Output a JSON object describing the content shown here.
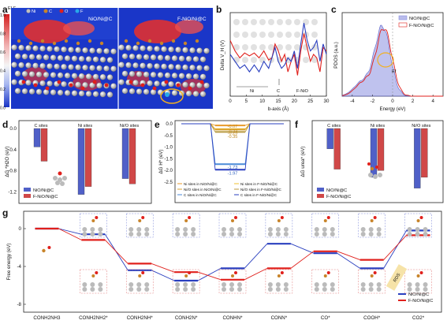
{
  "panels": {
    "a": {
      "letter": "a",
      "elf_label": "ELF",
      "scale_ticks": [
        "1.0",
        "0.8",
        "0.6",
        "0.4",
        "0.2",
        "0.0"
      ],
      "legend": [
        {
          "label": "Ni",
          "color": "#bfbfbf"
        },
        {
          "label": "C",
          "color": "#c8842a"
        },
        {
          "label": "O",
          "color": "#e0201c"
        },
        {
          "label": "F",
          "color": "#28a8e8"
        }
      ],
      "left_title": "NiO/Ni@C",
      "right_title": "F-NiO/Ni@C"
    },
    "b": {
      "letter": "b",
      "ylabel": "Delta V_H (V)",
      "xlabel": "b-axis (Å)",
      "ni_label": "Ni",
      "c_label": "C",
      "fnio_label": "F-NiO"
    },
    "c": {
      "letter": "c",
      "ylabel": "PDOS (a.u.)",
      "xlabel": "Energy (eV)",
      "ef_label": "Ef"
    },
    "d": {
      "letter": "d",
      "ylabel": "ΔG *H2O (eV)"
    },
    "e": {
      "letter": "e",
      "ylabel": "ΔG H* (eV)"
    },
    "f": {
      "letter": "f",
      "ylabel": "ΔG urea* (eV)"
    },
    "g": {
      "letter": "g",
      "ylabel": "Free energy (eV)",
      "rds_label": "RDS"
    }
  },
  "chart_data": [
    {
      "panel": "b",
      "type": "line",
      "xlabel": "b-axis (Å)",
      "ylabel": "Delta V_H (V)",
      "xlim": [
        0,
        30
      ],
      "xticks": [
        0,
        5,
        10,
        15,
        20,
        25,
        30
      ],
      "ylim": [
        -0.6,
        0.6
      ],
      "series": [
        {
          "color": "#e0201c",
          "x": [
            0,
            1.5,
            3,
            4.5,
            6,
            7.5,
            9,
            10.5,
            12,
            13,
            14,
            15,
            16,
            17,
            18,
            19,
            20,
            21,
            22,
            23,
            24,
            25,
            26,
            27,
            28,
            29,
            30
          ],
          "y": [
            0.2,
            0.05,
            -0.05,
            0.02,
            -0.02,
            0.02,
            -0.05,
            0.05,
            -0.08,
            -0.05,
            0.15,
            0.05,
            -0.1,
            0.0,
            -0.25,
            -0.1,
            0.0,
            -0.3,
            0.05,
            0.3,
            0.1,
            -0.1,
            0.0,
            -0.05,
            -0.25,
            0.1,
            0.05
          ]
        },
        {
          "color": "#2a3fbf",
          "x": [
            0,
            1.5,
            3,
            4.5,
            6,
            7.5,
            9,
            10.5,
            12,
            13,
            14,
            15,
            16,
            17,
            18,
            19,
            20,
            21,
            22,
            23,
            24,
            25,
            26,
            27,
            28,
            29,
            30
          ],
          "y": [
            0.0,
            -0.1,
            -0.2,
            -0.15,
            -0.25,
            -0.15,
            -0.25,
            -0.1,
            -0.2,
            -0.05,
            0.1,
            -0.1,
            -0.2,
            -0.15,
            -0.05,
            -0.1,
            0.05,
            -0.2,
            0.15,
            0.45,
            0.2,
            0.05,
            0.1,
            0.2,
            -0.1,
            0.15,
            0.0
          ]
        }
      ]
    },
    {
      "panel": "c",
      "type": "area",
      "xlabel": "Energy (eV)",
      "ylabel": "PDOS (a.u.)",
      "xlim": [
        -5,
        5
      ],
      "xticks": [
        -4,
        -2,
        0,
        2,
        4
      ],
      "series": [
        {
          "name": "NiO/Ni@C",
          "color": "#8a8fe0"
        },
        {
          "name": "F-NiO/Ni@C",
          "color": "#e0201c"
        }
      ]
    },
    {
      "panel": "d",
      "type": "bar",
      "ylabel": "ΔG *H2O (eV)",
      "categories": [
        "C sites",
        "Ni sites",
        "Ni/O sites"
      ],
      "ylim": [
        -1.3,
        0.0
      ],
      "yticks": [
        "0.0",
        "-0.4",
        "-0.8",
        "-1.2"
      ],
      "series": [
        {
          "name": "NiO/Ni@C",
          "color": "#5060c8",
          "values": [
            -0.35,
            -1.25,
            -0.95
          ]
        },
        {
          "name": "F-NiO/Ni@C",
          "color": "#d04848",
          "values": [
            -0.62,
            -1.1,
            -1.05
          ]
        }
      ]
    },
    {
      "panel": "e",
      "type": "line",
      "ylabel": "ΔG H* (eV)",
      "ylim": [
        -2.5,
        0.0
      ],
      "yticks": [
        "0.0",
        "-0.5",
        "-1.0",
        "-1.5",
        "-2.0",
        "-2.5"
      ],
      "labels": [
        "-0.07",
        "-0.23",
        "-0.25",
        "-0.35",
        "-1.73",
        "-1.97"
      ],
      "series": [
        {
          "name": "Ni sites in NiO/Ni@C",
          "value": -0.07,
          "color": "#e89a2a"
        },
        {
          "name": "Ni sites in F-NiO/Ni@C",
          "value": -0.23,
          "color": "#f2c230"
        },
        {
          "name": "Ni/O sites in NiO/Ni@C",
          "value": -0.25,
          "color": "#d8a030"
        },
        {
          "name": "Ni/O sites in F-NiO/Ni@C",
          "value": -0.35,
          "color": "#b89a40"
        },
        {
          "name": "C sites in NiO/Ni@C",
          "value": -1.73,
          "color": "#4a8ad8"
        },
        {
          "name": "C sites in F-NiO/Ni@C",
          "value": -1.97,
          "color": "#2a3fbf"
        }
      ]
    },
    {
      "panel": "f",
      "type": "bar",
      "ylabel": "ΔG urea* (eV)",
      "categories": [
        "C sites",
        "Ni sites",
        "Ni/O sites"
      ],
      "ylim": [
        -1.0,
        0.0
      ],
      "series": [
        {
          "name": "NiO/Ni@C",
          "color": "#5060c8",
          "values": [
            -0.3,
            -0.72,
            -0.88
          ]
        },
        {
          "name": "F-NiO/Ni@C",
          "color": "#d04848",
          "values": [
            -0.6,
            -0.62,
            -0.72
          ]
        }
      ]
    },
    {
      "panel": "g",
      "type": "line",
      "ylabel": "Free energy (eV)",
      "categories": [
        "CONH2NH3",
        "CONH2NH2*",
        "CONH2NH*",
        "CONH2N*",
        "CONHN*",
        "CONN*",
        "CO*",
        "COOH*",
        "CO2*"
      ],
      "ylim": [
        -8,
        1
      ],
      "yticks": [
        "0",
        "-4",
        "-8"
      ],
      "series": [
        {
          "name": "NiO/Ni@C",
          "color": "#2a3fbf",
          "values": [
            0.0,
            -0.6,
            -4.4,
            -5.5,
            -4.2,
            -1.6,
            -2.6,
            -4.2,
            -0.2
          ]
        },
        {
          "name": "F-NiO/Ni@C",
          "color": "#e0201c",
          "values": [
            0.0,
            -1.2,
            -3.7,
            -4.6,
            -5.4,
            -4.2,
            -2.4,
            -3.3,
            -0.7
          ]
        }
      ]
    }
  ]
}
